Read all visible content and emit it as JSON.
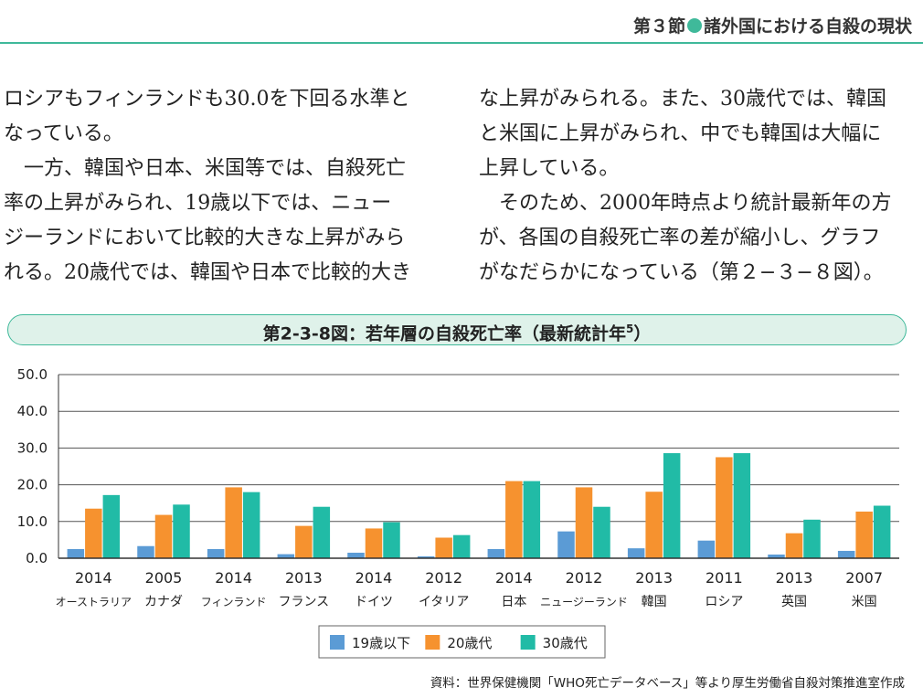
{
  "header": {
    "section_prefix": "第３節",
    "section_title": "諸外国における自殺の現状"
  },
  "body_text": {
    "left": [
      "ロシアもフィンランドも30.0を下回る水準と",
      "なっている。",
      "　一方、韓国や日本、米国等では、自殺死亡",
      "率の上昇がみられ、19歳以下では、ニュー",
      "ジーランドにおいて比較的大きな上昇がみら",
      "れる。20歳代では、韓国や日本で比較的大き"
    ],
    "right": [
      "な上昇がみられる。また、30歳代では、韓国",
      "と米国に上昇がみられ、中でも韓国は大幅に",
      "上昇している。",
      "　そのため、2000年時点より統計最新年の方",
      "が、各国の自殺死亡率の差が縮小し、グラフ",
      "がなだらかになっている（第２−３−８図）。"
    ]
  },
  "figure": {
    "title": "第2-3-8図：若年層の自殺死亡率（最新統計年",
    "title_sup": "5",
    "title_close": "）"
  },
  "source_note": "資料：世界保健機関「WHO死亡データベース」等より厚生労働省自殺対策推進室作成",
  "chart_data": {
    "type": "bar",
    "categories": [
      "オーストラリア",
      "カナダ",
      "フィンランド",
      "フランス",
      "ドイツ",
      "イタリア",
      "日本",
      "ニュージーランド",
      "韓国",
      "ロシア",
      "英国",
      "米国"
    ],
    "years": [
      "2014",
      "2005",
      "2014",
      "2013",
      "2014",
      "2012",
      "2014",
      "2012",
      "2013",
      "2011",
      "2013",
      "2007"
    ],
    "series": [
      {
        "name": "19歳以下",
        "color": "#5b9bd5",
        "values": [
          2.5,
          3.3,
          2.5,
          1.1,
          1.5,
          0.5,
          2.5,
          7.3,
          2.7,
          4.8,
          1.0,
          2.0
        ]
      },
      {
        "name": "20歳代",
        "color": "#f6922f",
        "values": [
          13.5,
          11.8,
          19.3,
          8.8,
          8.1,
          5.6,
          21.0,
          19.3,
          18.1,
          27.5,
          6.8,
          12.7
        ]
      },
      {
        "name": "30歳代",
        "color": "#21bba6",
        "values": [
          17.2,
          14.6,
          18.0,
          14.0,
          9.8,
          6.3,
          21.0,
          14.0,
          28.6,
          28.6,
          10.5,
          14.3
        ]
      }
    ],
    "ylim": [
      0,
      50
    ],
    "yticks": [
      "0.0",
      "10.0",
      "20.0",
      "30.0",
      "40.0",
      "50.0"
    ],
    "grid": true,
    "legend_position": "bottom-center"
  }
}
